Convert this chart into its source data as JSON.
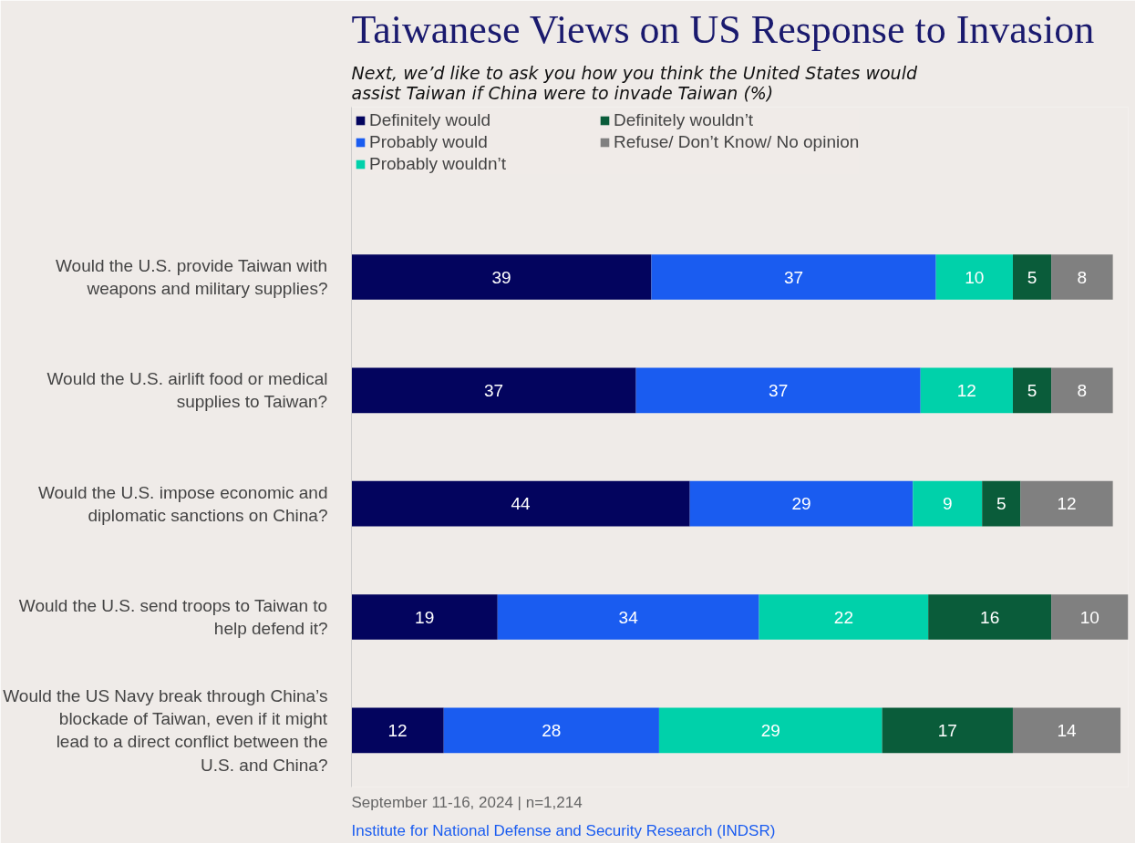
{
  "chart_data": {
    "type": "bar",
    "orientation": "horizontal",
    "stacked": true,
    "title": "Taiwanese Views on US Response to Invasion",
    "subtitle": "Next, we’d like to ask you how you think the United States would assist Taiwan if China were to invade Taiwan (%)",
    "categories": [
      "Would the U.S. provide Taiwan with weapons and military supplies?",
      "Would the U.S. airlift food or medical supplies to Taiwan?",
      "Would the U.S. impose economic and diplomatic sanctions on China?",
      "Would the U.S. send troops to Taiwan to help defend it?",
      "Would the US Navy break through China’s blockade of Taiwan, even if it might lead to a direct conflict between the U.S. and China?"
    ],
    "series": [
      {
        "name": "Definitely would",
        "color": "#03045e",
        "values": [
          39,
          37,
          44,
          19,
          12
        ]
      },
      {
        "name": "Probably would",
        "color": "#1a5cf0",
        "values": [
          37,
          37,
          29,
          34,
          28
        ]
      },
      {
        "name": "Probably wouldn’t",
        "color": "#00d1aa",
        "values": [
          10,
          12,
          9,
          22,
          29
        ]
      },
      {
        "name": "Definitely wouldn’t",
        "color": "#0a5c3a",
        "values": [
          5,
          5,
          5,
          16,
          17
        ]
      },
      {
        "name": "Refuse/ Don’t Know/ No opinion",
        "color": "#808080",
        "values": [
          8,
          8,
          12,
          10,
          14
        ]
      }
    ],
    "xlim": [
      0,
      101
    ],
    "tick_labels": "y",
    "data_labels": true,
    "legend": "top",
    "grid": false,
    "annotations": [
      "September 11-16, 2024 | n=1,214",
      "Institute for National Defense and Security Research (INDSR)"
    ]
  }
}
